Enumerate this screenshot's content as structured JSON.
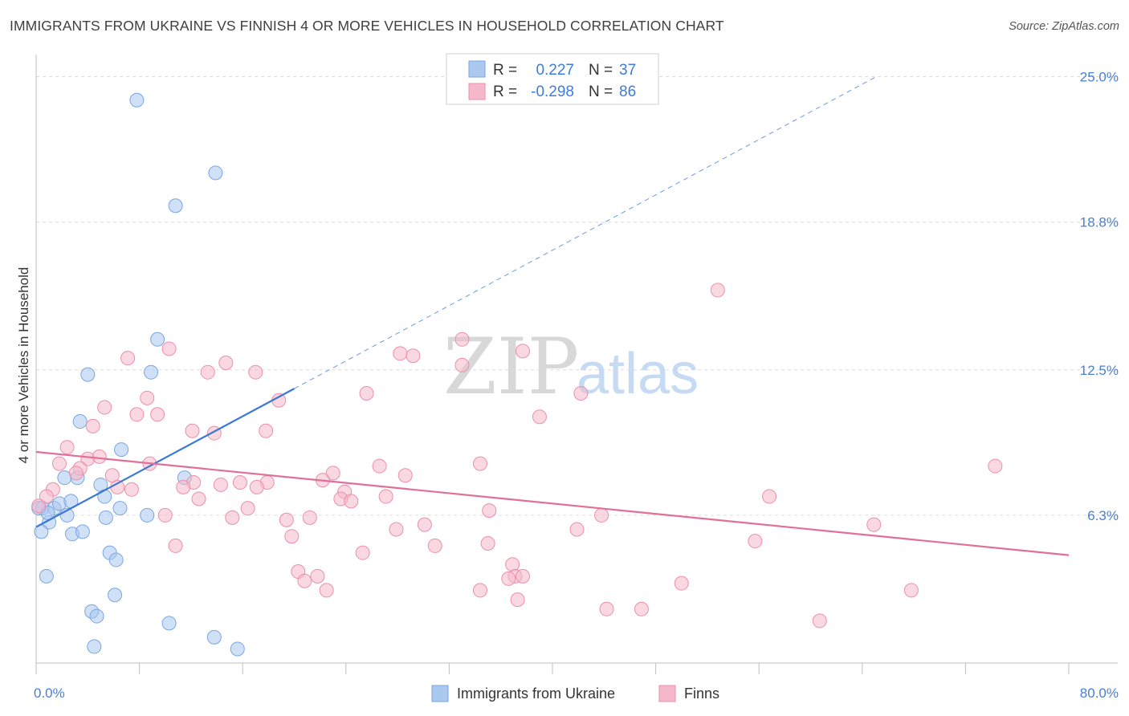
{
  "header": {
    "title": "IMMIGRANTS FROM UKRAINE VS FINNISH 4 OR MORE VEHICLES IN HOUSEHOLD CORRELATION CHART",
    "source": "Source: ZipAtlas.com"
  },
  "watermark": {
    "zip": "ZIP",
    "atlas": "atlas"
  },
  "legend": {
    "rows": [
      {
        "r_label": "R =",
        "r_value": "0.227",
        "n_label": "N =",
        "n_value": "37",
        "color": "#aac8f0"
      },
      {
        "r_label": "R =",
        "r_value": "-0.298",
        "n_label": "N =",
        "n_value": "86",
        "color": "#f5b8cb"
      }
    ]
  },
  "chart_data": {
    "type": "scatter",
    "title": "IMMIGRANTS FROM UKRAINE VS FINNISH 4 OR MORE VEHICLES IN HOUSEHOLD CORRELATION CHART",
    "xlabel": "",
    "ylabel": "4 or more Vehicles in Household",
    "xlim": [
      0,
      80
    ],
    "ylim": [
      0,
      25.6
    ],
    "x_tick_labels": [
      "0.0%",
      "80.0%"
    ],
    "y_ticks": [
      {
        "value": 6.3,
        "label": "6.3%"
      },
      {
        "value": 12.5,
        "label": "12.5%"
      },
      {
        "value": 18.8,
        "label": "18.8%"
      },
      {
        "value": 25.0,
        "label": "25.0%"
      }
    ],
    "series": [
      {
        "name": "Immigrants from Ukraine",
        "color": "#aac8f0",
        "stroke": "#7aa6e0",
        "line_color": "#3a78d4",
        "trend": {
          "x0": 0.0,
          "y0": 5.8,
          "x1": 20.0,
          "y1": 11.7,
          "extend_to_x": 65.0
        },
        "points": [
          [
            7.8,
            24.0
          ],
          [
            13.9,
            20.9
          ],
          [
            10.8,
            19.5
          ],
          [
            9.4,
            13.8
          ],
          [
            4.0,
            12.3
          ],
          [
            8.9,
            12.4
          ],
          [
            3.4,
            10.3
          ],
          [
            6.6,
            9.1
          ],
          [
            2.2,
            7.9
          ],
          [
            3.2,
            7.9
          ],
          [
            11.5,
            7.9
          ],
          [
            5.0,
            7.6
          ],
          [
            5.3,
            7.1
          ],
          [
            0.5,
            6.6
          ],
          [
            1.4,
            6.6
          ],
          [
            1.8,
            6.8
          ],
          [
            2.7,
            6.9
          ],
          [
            6.5,
            6.6
          ],
          [
            2.4,
            6.3
          ],
          [
            5.4,
            6.2
          ],
          [
            8.6,
            6.3
          ],
          [
            1.0,
            6.0
          ],
          [
            0.4,
            5.6
          ],
          [
            2.8,
            5.5
          ],
          [
            3.6,
            5.6
          ],
          [
            5.7,
            4.7
          ],
          [
            6.2,
            4.4
          ],
          [
            0.8,
            3.7
          ],
          [
            6.1,
            2.9
          ],
          [
            4.3,
            2.2
          ],
          [
            4.7,
            2.0
          ],
          [
            10.3,
            1.7
          ],
          [
            13.8,
            1.1
          ],
          [
            4.5,
            0.7
          ],
          [
            15.6,
            0.6
          ],
          [
            0.2,
            6.6
          ],
          [
            0.9,
            6.4
          ]
        ]
      },
      {
        "name": "Finns",
        "color": "#f5b8cb",
        "stroke": "#ec8fab",
        "line_color": "#e0709a",
        "trend": {
          "x0": 0.0,
          "y0": 9.0,
          "x1": 80.0,
          "y1": 4.6
        },
        "points": [
          [
            52.8,
            15.9
          ],
          [
            33.0,
            13.8
          ],
          [
            10.3,
            13.4
          ],
          [
            28.2,
            13.2
          ],
          [
            29.2,
            13.1
          ],
          [
            37.7,
            13.3
          ],
          [
            7.1,
            13.0
          ],
          [
            14.7,
            12.8
          ],
          [
            33.0,
            12.7
          ],
          [
            13.3,
            12.4
          ],
          [
            17.0,
            12.4
          ],
          [
            25.6,
            11.5
          ],
          [
            42.2,
            11.5
          ],
          [
            8.6,
            11.3
          ],
          [
            18.8,
            11.2
          ],
          [
            5.3,
            10.9
          ],
          [
            7.8,
            10.6
          ],
          [
            9.4,
            10.6
          ],
          [
            39.0,
            10.5
          ],
          [
            4.4,
            10.1
          ],
          [
            12.1,
            9.9
          ],
          [
            13.8,
            9.8
          ],
          [
            17.8,
            9.9
          ],
          [
            2.4,
            9.2
          ],
          [
            4.0,
            8.7
          ],
          [
            4.9,
            8.8
          ],
          [
            1.8,
            8.5
          ],
          [
            3.4,
            8.3
          ],
          [
            8.8,
            8.5
          ],
          [
            26.6,
            8.4
          ],
          [
            34.4,
            8.5
          ],
          [
            74.3,
            8.4
          ],
          [
            3.1,
            8.1
          ],
          [
            5.9,
            8.0
          ],
          [
            23.0,
            8.1
          ],
          [
            28.6,
            8.0
          ],
          [
            22.2,
            7.8
          ],
          [
            12.2,
            7.7
          ],
          [
            14.3,
            7.6
          ],
          [
            15.8,
            7.7
          ],
          [
            17.9,
            7.7
          ],
          [
            7.4,
            7.4
          ],
          [
            11.4,
            7.5
          ],
          [
            17.1,
            7.5
          ],
          [
            1.3,
            7.4
          ],
          [
            6.3,
            7.5
          ],
          [
            23.9,
            7.3
          ],
          [
            0.8,
            7.1
          ],
          [
            12.6,
            7.0
          ],
          [
            23.6,
            7.0
          ],
          [
            27.1,
            7.1
          ],
          [
            24.4,
            6.9
          ],
          [
            56.8,
            7.1
          ],
          [
            16.4,
            6.6
          ],
          [
            35.1,
            6.5
          ],
          [
            10.0,
            6.3
          ],
          [
            15.2,
            6.2
          ],
          [
            19.4,
            6.1
          ],
          [
            21.2,
            6.2
          ],
          [
            43.8,
            6.3
          ],
          [
            30.1,
            5.9
          ],
          [
            64.9,
            5.9
          ],
          [
            19.8,
            5.4
          ],
          [
            27.9,
            5.7
          ],
          [
            41.9,
            5.7
          ],
          [
            10.8,
            5.0
          ],
          [
            25.3,
            4.7
          ],
          [
            30.9,
            5.0
          ],
          [
            35.0,
            5.1
          ],
          [
            55.7,
            5.2
          ],
          [
            36.9,
            4.2
          ],
          [
            20.3,
            3.9
          ],
          [
            21.8,
            3.7
          ],
          [
            37.1,
            3.7
          ],
          [
            37.7,
            3.7
          ],
          [
            20.8,
            3.5
          ],
          [
            36.6,
            3.6
          ],
          [
            50.0,
            3.4
          ],
          [
            22.5,
            3.1
          ],
          [
            34.4,
            3.1
          ],
          [
            67.8,
            3.1
          ],
          [
            37.3,
            2.7
          ],
          [
            44.2,
            2.3
          ],
          [
            46.9,
            2.3
          ],
          [
            60.7,
            1.8
          ],
          [
            0.2,
            6.7
          ]
        ]
      }
    ]
  },
  "bottom_legend": {
    "items": [
      {
        "label": "Immigrants from Ukraine",
        "color": "#aac8f0"
      },
      {
        "label": "Finns",
        "color": "#f5b8cb"
      }
    ]
  }
}
